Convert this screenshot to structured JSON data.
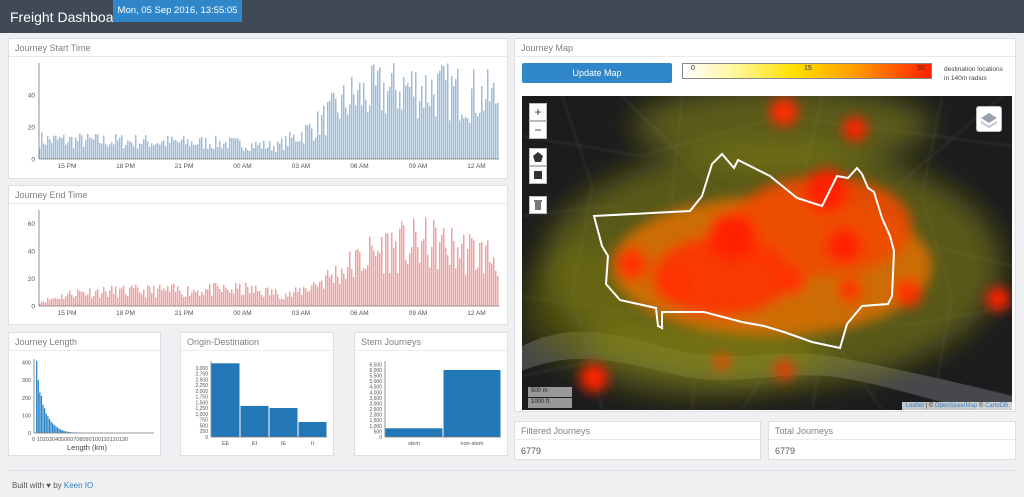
{
  "header": {
    "brand": "Freight Dashboard",
    "datetime": "Mon, 05 Sep 2016, 13:55:05"
  },
  "start_time": {
    "title": "Journey Start Time",
    "y_ticks": [
      "40",
      "20",
      "0"
    ],
    "x_ticks": [
      "15 PM",
      "18 PM",
      "21 PM",
      "00 AM",
      "03 AM",
      "06 AM",
      "09 AM",
      "12 AM"
    ],
    "color": "#9dbedb"
  },
  "end_time": {
    "title": "Journey End Time",
    "y_ticks": [
      "60",
      "40",
      "20",
      "0"
    ],
    "x_ticks": [
      "15 PM",
      "18 PM",
      "21 PM",
      "00 AM",
      "03 AM",
      "06 AM",
      "09 AM",
      "12 AM"
    ],
    "color": "#f2a0a0"
  },
  "journey_length": {
    "title": "Journey Length",
    "y_ticks": [
      "400",
      "300",
      "200",
      "100",
      "0"
    ],
    "x_ticks": "0 102030405060708090100110120130",
    "xlabel": "Length (km)",
    "color": "#2f86c8"
  },
  "origin_destination": {
    "title": "Origin-Destination",
    "color": "#2277b6"
  },
  "stem_journeys": {
    "title": "Stem Journeys",
    "color": "#2277b6"
  },
  "map": {
    "title": "Journey Map",
    "update_button": "Update Map",
    "legend_ticks": [
      "0",
      "15",
      "30"
    ],
    "legend_text_1": "destination locations",
    "legend_text_2": "in 140m radius",
    "zoom_in": "+",
    "zoom_out": "−",
    "scale_m": "500 m",
    "scale_ft": "1000 ft",
    "attribution_leaflet": "Leaflet",
    "attribution_sep1": " | © ",
    "attribution_osm": "OpenStreetMap",
    "attribution_sep2": " © ",
    "attribution_carto": "CartoDB"
  },
  "filtered": {
    "title": "Filtered Journeys",
    "value": "6779"
  },
  "total": {
    "title": "Total Journeys",
    "value": "6779"
  },
  "footer": {
    "built_with": "Built with ",
    "heart": "♥",
    "by": " by ",
    "link": "Keen IO"
  },
  "chart_data": [
    {
      "type": "bar",
      "title": "Journey Start Time",
      "x_ticks": [
        "15 PM",
        "18 PM",
        "21 PM",
        "00 AM",
        "03 AM",
        "06 AM",
        "09 AM",
        "12 AM"
      ],
      "ylim": [
        0,
        60
      ],
      "profile": [
        [
          0,
          12
        ],
        [
          0.4,
          10
        ],
        [
          0.52,
          8
        ],
        [
          0.6,
          20
        ],
        [
          0.68,
          38
        ],
        [
          0.8,
          45
        ],
        [
          0.9,
          42
        ],
        [
          1.0,
          38
        ]
      ]
    },
    {
      "type": "bar",
      "title": "Journey End Time",
      "x_ticks": [
        "15 PM",
        "18 PM",
        "21 PM",
        "00 AM",
        "03 AM",
        "06 AM",
        "09 AM",
        "12 AM"
      ],
      "ylim": [
        0,
        70
      ],
      "profile": [
        [
          0,
          3
        ],
        [
          0.08,
          10
        ],
        [
          0.45,
          12
        ],
        [
          0.55,
          8
        ],
        [
          0.65,
          24
        ],
        [
          0.75,
          42
        ],
        [
          0.85,
          45
        ],
        [
          1.0,
          35
        ]
      ]
    },
    {
      "type": "bar",
      "title": "Journey Length",
      "xlabel": "Length (km)",
      "ylim": [
        0,
        420
      ],
      "values": [
        410,
        300,
        230,
        210,
        160,
        140,
        110,
        95,
        80,
        65,
        55,
        45,
        38,
        32,
        25,
        20,
        16,
        12,
        10,
        8,
        6,
        5,
        4,
        3,
        3,
        2,
        2,
        1,
        1,
        1
      ]
    },
    {
      "type": "bar",
      "title": "Origin-Destination",
      "categories": [
        "EE",
        "EI",
        "IE",
        "II"
      ],
      "values": [
        3200,
        1350,
        1260,
        650
      ],
      "y_ticks": [
        0,
        250,
        500,
        750,
        1000,
        1250,
        1500,
        1750,
        2000,
        2250,
        2500,
        2750,
        3000
      ],
      "ylim": [
        0,
        3300
      ]
    },
    {
      "type": "bar",
      "title": "Stem Journeys",
      "categories": [
        "stem",
        "non-stem"
      ],
      "values": [
        780,
        6000
      ],
      "y_ticks": [
        0,
        500,
        1000,
        1500,
        2000,
        2500,
        3000,
        3500,
        4000,
        4500,
        5000,
        5500,
        6000,
        6500
      ],
      "ylim": [
        0,
        6800
      ]
    }
  ]
}
